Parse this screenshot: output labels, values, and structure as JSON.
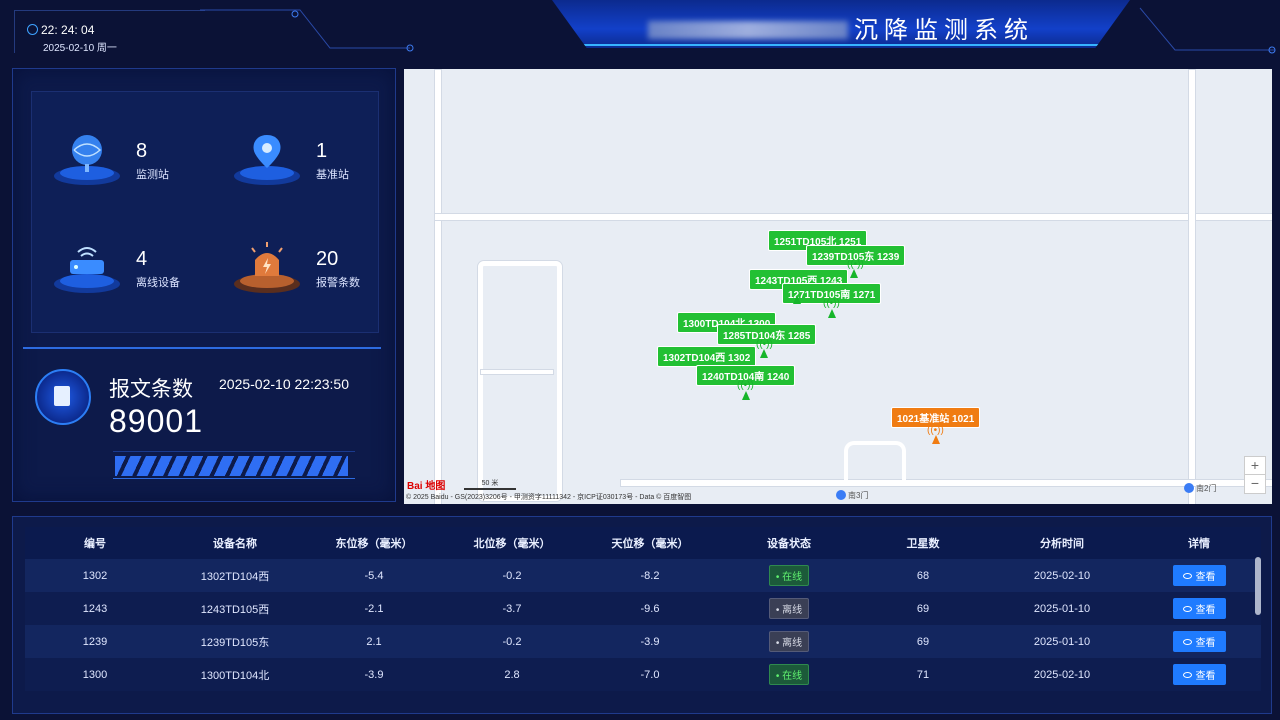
{
  "header": {
    "time": "22: 24: 04",
    "date": "2025-02-10 周一",
    "title_visible": "沉降监测系统"
  },
  "stats": [
    {
      "value": "8",
      "label": "监测站",
      "icon": "globe-icon",
      "color": "#2d7cf6"
    },
    {
      "value": "1",
      "label": "基准站",
      "icon": "location-pin-icon",
      "color": "#2d7cf6"
    },
    {
      "value": "4",
      "label": "离线设备",
      "icon": "router-icon",
      "color": "#2d7cf6"
    },
    {
      "value": "20",
      "label": "报警条数",
      "icon": "alarm-light-icon",
      "color": "#d9783a"
    }
  ],
  "message": {
    "label": "报文条数",
    "time": "2025-02-10 22:23:50",
    "count": "89001",
    "progress": 0.98
  },
  "map": {
    "markers": [
      {
        "label": "1251TD105北 1251",
        "type": "monitor"
      },
      {
        "label": "1239TD105东 1239",
        "type": "monitor"
      },
      {
        "label": "1243TD105西 1243",
        "type": "monitor"
      },
      {
        "label": "1271TD105南 1271",
        "type": "monitor"
      },
      {
        "label": "1300TD104北 1300",
        "type": "monitor"
      },
      {
        "label": "1285TD104东 1285",
        "type": "monitor"
      },
      {
        "label": "1302TD104西 1302",
        "type": "monitor"
      },
      {
        "label": "1240TD104南 1240",
        "type": "monitor"
      },
      {
        "label": "1021基准站 1021",
        "type": "reference"
      }
    ],
    "gate1": "南3门",
    "gate2": "南2门",
    "scale": "50 米",
    "logo": "Bai 地图",
    "copyright": "© 2025 Baidu - GS(2023)3206号 - 甲测资字11111342 - 京ICP证030173号 - Data © 百度智图",
    "zoom_in": "+",
    "zoom_out": "−"
  },
  "table": {
    "headers": [
      "编号",
      "设备名称",
      "东位移（毫米）",
      "北位移（毫米）",
      "天位移（毫米）",
      "设备状态",
      "卫星数",
      "分析时间",
      "详情"
    ],
    "rows": [
      {
        "id": "1302",
        "name": "1302TD104西",
        "east": "-5.4",
        "north": "-0.2",
        "up": "-8.2",
        "status": "在线",
        "online": true,
        "sats": "68",
        "time": "2025-02-10",
        "action": "查看"
      },
      {
        "id": "1243",
        "name": "1243TD105西",
        "east": "-2.1",
        "north": "-3.7",
        "up": "-9.6",
        "status": "离线",
        "online": false,
        "sats": "69",
        "time": "2025-01-10",
        "action": "查看"
      },
      {
        "id": "1239",
        "name": "1239TD105东",
        "east": "2.1",
        "north": "-0.2",
        "up": "-3.9",
        "status": "离线",
        "online": false,
        "sats": "69",
        "time": "2025-01-10",
        "action": "查看"
      },
      {
        "id": "1300",
        "name": "1300TD104北",
        "east": "-3.9",
        "north": "2.8",
        "up": "-7.0",
        "status": "在线",
        "online": true,
        "sats": "71",
        "time": "2025-02-10",
        "action": "查看"
      }
    ]
  }
}
